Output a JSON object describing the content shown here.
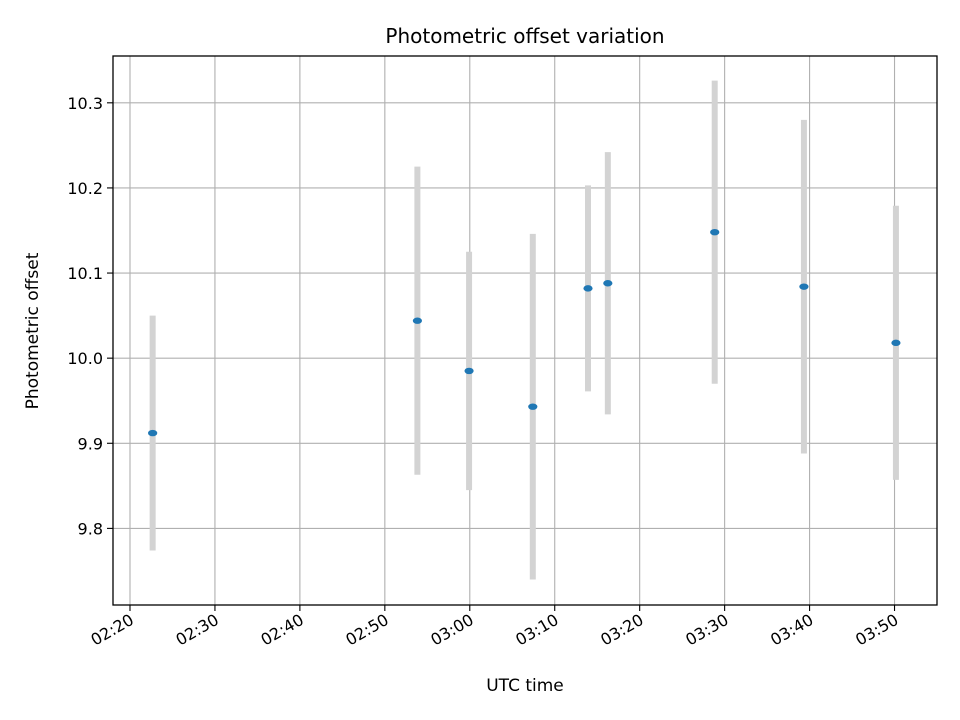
{
  "chart_data": {
    "type": "scatter",
    "title": "Photometric offset variation",
    "xlabel": "UTC time",
    "ylabel": "Photometric offset",
    "x_unit": "time",
    "xlim": [
      "02:18",
      "03:55"
    ],
    "ylim": [
      9.71,
      10.355
    ],
    "x_ticks": [
      "02:20",
      "02:30",
      "02:40",
      "02:50",
      "03:00",
      "03:10",
      "03:20",
      "03:30",
      "03:40",
      "03:50"
    ],
    "y_ticks": [
      9.8,
      9.9,
      10.0,
      10.1,
      10.2,
      10.3
    ],
    "y_tick_labels": [
      "9.8",
      "9.9",
      "10.0",
      "10.1",
      "10.2",
      "10.3"
    ],
    "grid": true,
    "series": [
      {
        "points": [
          {
            "x": "02:22:40",
            "y": 9.912,
            "err": 0.138
          },
          {
            "x": "02:53:50",
            "y": 10.044,
            "err": 0.181
          },
          {
            "x": "02:59:55",
            "y": 9.985,
            "err": 0.14
          },
          {
            "x": "03:07:25",
            "y": 9.943,
            "err": 0.203
          },
          {
            "x": "03:13:55",
            "y": 10.082,
            "err": 0.121
          },
          {
            "x": "03:16:15",
            "y": 10.088,
            "err": 0.154
          },
          {
            "x": "03:28:50",
            "y": 10.148,
            "err": 0.178
          },
          {
            "x": "03:39:20",
            "y": 10.084,
            "err": 0.196
          },
          {
            "x": "03:50:10",
            "y": 10.018,
            "err": 0.161
          }
        ]
      }
    ],
    "colors": {
      "point": "#1f77b4",
      "errorbar": "#d3d3d3",
      "grid": "#b0b0b0",
      "axes": "#000000"
    }
  }
}
